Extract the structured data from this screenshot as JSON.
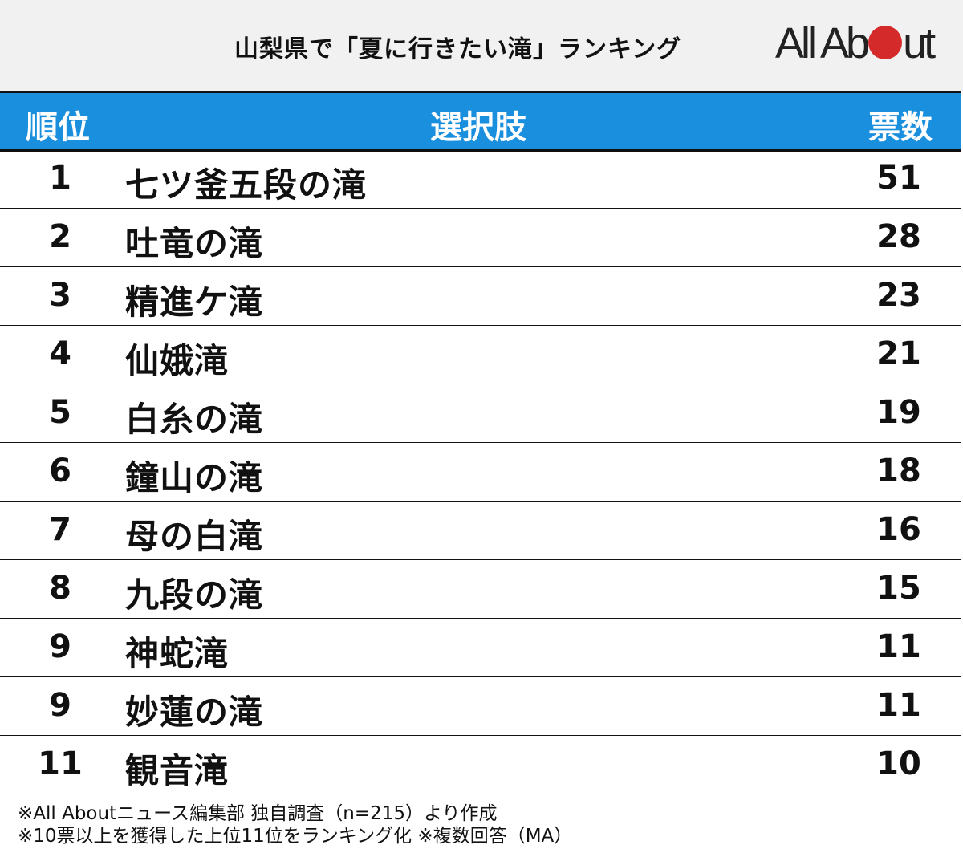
{
  "header": {
    "title": "山梨県で「夏に行きたい滝」ランキング",
    "logo": {
      "pre": "All Ab",
      "post": "ut",
      "dot_color": "#d42a2a"
    }
  },
  "table": {
    "columns": {
      "rank": "順位",
      "choice": "選択肢",
      "votes": "票数"
    },
    "header_color": "#1a8fde",
    "rows": [
      {
        "rank": "1",
        "name": "七ツ釜五段の滝",
        "votes": "51"
      },
      {
        "rank": "2",
        "name": "吐竜の滝",
        "votes": "28"
      },
      {
        "rank": "3",
        "name": "精進ケ滝",
        "votes": "23"
      },
      {
        "rank": "4",
        "name": "仙娥滝",
        "votes": "21"
      },
      {
        "rank": "5",
        "name": "白糸の滝",
        "votes": "19"
      },
      {
        "rank": "6",
        "name": "鐘山の滝",
        "votes": "18"
      },
      {
        "rank": "7",
        "name": "母の白滝",
        "votes": "16"
      },
      {
        "rank": "8",
        "name": "九段の滝",
        "votes": "15"
      },
      {
        "rank": "9",
        "name": "神蛇滝",
        "votes": "11"
      },
      {
        "rank": "9",
        "name": "妙蓮の滝",
        "votes": "11"
      },
      {
        "rank": "11",
        "name": "観音滝",
        "votes": "10"
      }
    ]
  },
  "footnotes": {
    "line1": "※All Aboutニュース編集部 独自調査（n=215）より作成",
    "line2": "※10票以上を獲得した上位11位をランキング化 ※複数回答（MA）"
  },
  "chart_data": {
    "type": "table",
    "title": "山梨県で「夏に行きたい滝」ランキング",
    "columns": [
      "順位",
      "選択肢",
      "票数"
    ],
    "categories": [
      "七ツ釜五段の滝",
      "吐竜の滝",
      "精進ケ滝",
      "仙娥滝",
      "白糸の滝",
      "鐘山の滝",
      "母の白滝",
      "九段の滝",
      "神蛇滝",
      "妙蓮の滝",
      "観音滝"
    ],
    "ranks": [
      1,
      2,
      3,
      4,
      5,
      6,
      7,
      8,
      9,
      9,
      11
    ],
    "values": [
      51,
      28,
      23,
      21,
      19,
      18,
      16,
      15,
      11,
      11,
      10
    ],
    "notes": [
      "※All Aboutニュース編集部 独自調査（n=215）より作成",
      "※10票以上を獲得した上位11位をランキング化 ※複数回答（MA）"
    ]
  }
}
